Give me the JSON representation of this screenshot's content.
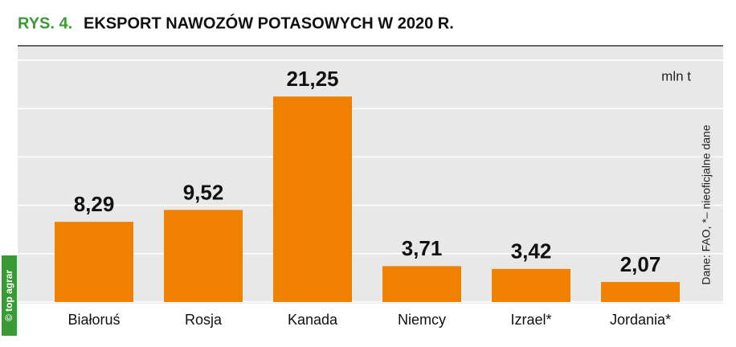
{
  "chart_data": {
    "type": "bar",
    "title_label": "RYS. 4.",
    "title": "EKSPORT NAWOZÓW POTASOWYCH W 2020 R.",
    "unit": "mln t",
    "source": "Dane: FAO, *– nieoficjalne dane",
    "copyright": "© top agrar",
    "categories": [
      "Białoruś",
      "Rosja",
      "Kanada",
      "Niemcy",
      "Izrael*",
      "Jordania*"
    ],
    "values": [
      8.29,
      9.52,
      21.25,
      3.71,
      3.42,
      2.07
    ],
    "value_labels": [
      "8,29",
      "9,52",
      "21,25",
      "3,71",
      "3,42",
      "2,07"
    ],
    "color": "#f08000",
    "ylim": [
      0,
      25
    ],
    "yticks": [
      0,
      5,
      10,
      15,
      20,
      25
    ],
    "grid": true
  }
}
